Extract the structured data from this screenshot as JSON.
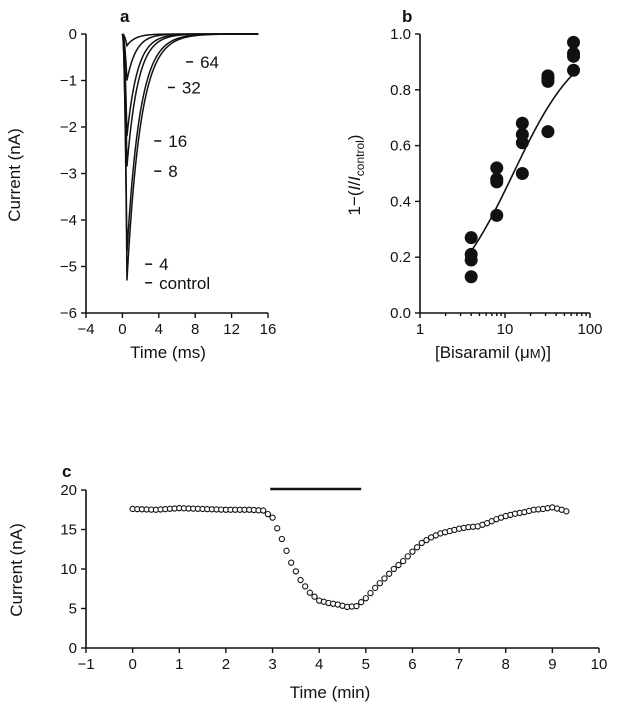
{
  "chart_data": [
    {
      "panel": "a",
      "type": "line",
      "xlabel": "Time (ms)",
      "ylabel": "Current (nA)",
      "xlim": [
        -4,
        16
      ],
      "ylim": [
        -6,
        0
      ],
      "x_ticks": [
        -4,
        0,
        4,
        8,
        12,
        16
      ],
      "y_ticks": [
        -6,
        -5,
        -4,
        -3,
        -2,
        -1,
        0
      ],
      "grid": false,
      "series": [
        {
          "name": "64",
          "peak_current": -0.25,
          "label_at": [
            7.0,
            -0.6
          ]
        },
        {
          "name": "32",
          "peak_current": -1.0,
          "label_at": [
            5.0,
            -1.15
          ]
        },
        {
          "name": "16",
          "peak_current": -2.2,
          "label_at": [
            3.5,
            -2.3
          ]
        },
        {
          "name": "8",
          "peak_current": -2.85,
          "label_at": [
            3.5,
            -2.95
          ]
        },
        {
          "name": "4",
          "peak_current": -4.7,
          "label_at": [
            2.5,
            -4.95
          ]
        },
        {
          "name": "control",
          "peak_current": -5.3,
          "label_at": [
            2.5,
            -5.35
          ]
        }
      ],
      "peak_time": 0.5
    },
    {
      "panel": "b",
      "type": "scatter",
      "xlabel": "[Bisaramil (μM)]",
      "ylabel": "1−(I/Icontrol)",
      "xscale": "log",
      "xlim": [
        1,
        100
      ],
      "ylim": [
        0,
        1.0
      ],
      "x_ticks": [
        1,
        10,
        100
      ],
      "y_ticks": [
        0,
        0.2,
        0.4,
        0.6,
        0.8,
        1.0
      ],
      "grid": false,
      "points": [
        [
          4,
          0.27
        ],
        [
          4,
          0.21
        ],
        [
          4,
          0.19
        ],
        [
          4,
          0.13
        ],
        [
          8,
          0.52
        ],
        [
          8,
          0.48
        ],
        [
          8,
          0.47
        ],
        [
          8,
          0.35
        ],
        [
          16,
          0.68
        ],
        [
          16,
          0.64
        ],
        [
          16,
          0.61
        ],
        [
          16,
          0.5
        ],
        [
          32,
          0.85
        ],
        [
          32,
          0.84
        ],
        [
          32,
          0.83
        ],
        [
          32,
          0.65
        ],
        [
          64,
          0.97
        ],
        [
          64,
          0.93
        ],
        [
          64,
          0.92
        ],
        [
          64,
          0.87
        ]
      ],
      "fit": {
        "kind": "hill",
        "ic50": 12.5,
        "hill_coefficient": 1.1
      }
    },
    {
      "panel": "c",
      "type": "scatter",
      "xlabel": "Time (min)",
      "ylabel": "Current (nA)",
      "xlim": [
        -1,
        10
      ],
      "ylim": [
        0,
        20
      ],
      "x_ticks": [
        -1,
        0,
        1,
        2,
        3,
        4,
        5,
        6,
        7,
        8,
        9,
        10
      ],
      "y_ticks": [
        0,
        5,
        10,
        15,
        20
      ],
      "grid": false,
      "drug_application": [
        2.95,
        4.9
      ],
      "points": [
        [
          0.0,
          17.6
        ],
        [
          0.5,
          17.5
        ],
        [
          1.0,
          17.7
        ],
        [
          1.5,
          17.6
        ],
        [
          2.0,
          17.5
        ],
        [
          2.5,
          17.5
        ],
        [
          2.8,
          17.4
        ],
        [
          3.0,
          16.5
        ],
        [
          3.2,
          13.8
        ],
        [
          3.4,
          10.8
        ],
        [
          3.6,
          8.6
        ],
        [
          3.8,
          7.0
        ],
        [
          4.0,
          6.0
        ],
        [
          4.2,
          5.7
        ],
        [
          4.4,
          5.5
        ],
        [
          4.6,
          5.2
        ],
        [
          4.8,
          5.3
        ],
        [
          5.0,
          6.3
        ],
        [
          5.2,
          7.6
        ],
        [
          5.4,
          8.8
        ],
        [
          5.6,
          10.0
        ],
        [
          5.8,
          11.0
        ],
        [
          6.0,
          12.2
        ],
        [
          6.2,
          13.3
        ],
        [
          6.4,
          14.0
        ],
        [
          6.6,
          14.5
        ],
        [
          6.8,
          14.8
        ],
        [
          7.0,
          15.1
        ],
        [
          7.2,
          15.3
        ],
        [
          7.4,
          15.4
        ],
        [
          7.6,
          15.8
        ],
        [
          7.8,
          16.3
        ],
        [
          8.0,
          16.7
        ],
        [
          8.2,
          17.0
        ],
        [
          8.4,
          17.2
        ],
        [
          8.6,
          17.5
        ],
        [
          8.8,
          17.6
        ],
        [
          9.0,
          17.8
        ],
        [
          9.2,
          17.5
        ],
        [
          9.3,
          17.3
        ]
      ]
    }
  ]
}
